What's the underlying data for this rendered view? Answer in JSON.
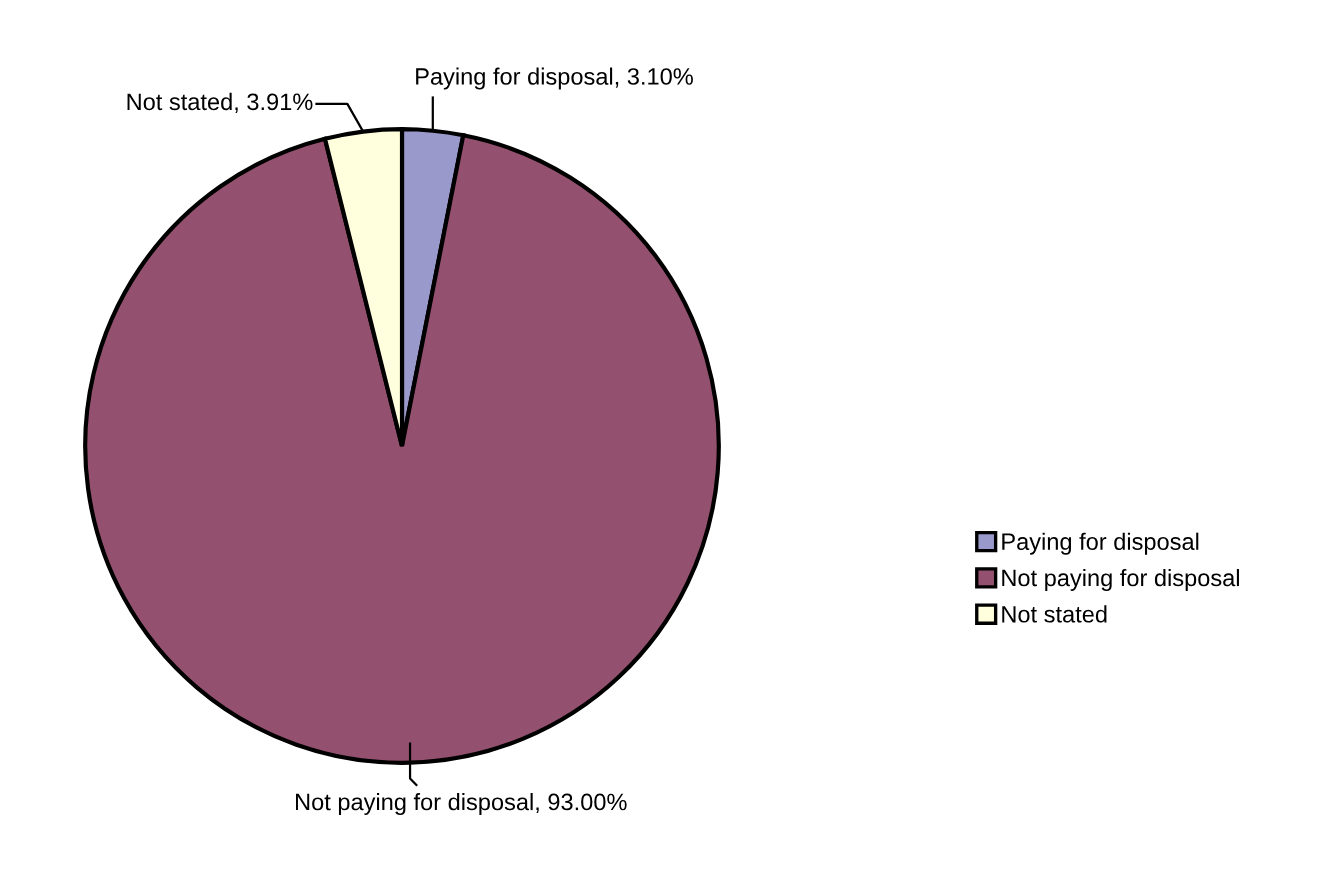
{
  "chart_data": {
    "type": "pie",
    "categories": [
      "Paying for disposal",
      "Not paying for disposal",
      "Not stated"
    ],
    "values": [
      3.1,
      93.0,
      3.91
    ],
    "colors": [
      "#9999cc",
      "#94516f",
      "#ffffdd"
    ],
    "value_labels": [
      "Paying for disposal, 3.10%",
      "Not paying for disposal, 93.00%",
      "Not stated, 3.91%"
    ],
    "legend": "right"
  }
}
